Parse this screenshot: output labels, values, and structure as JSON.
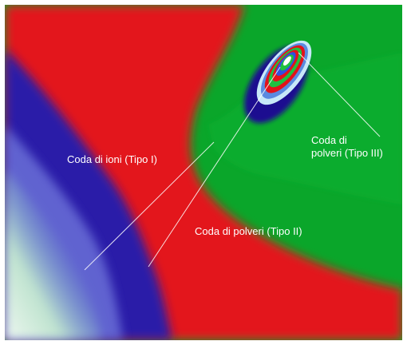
{
  "image": {
    "subject": "comet-false-color",
    "colors": {
      "green": "#0aa62a",
      "red": "#e3121a",
      "blue": "#2a1aa8",
      "pale": "#e8f5ec",
      "label": "#ffffff"
    }
  },
  "labels": {
    "ion_tail": "Coda di ioni (Tipo I)",
    "dust_tail_type2": "Coda di polveri (Tipo II)",
    "dust_tail_type3_line1": "Coda di",
    "dust_tail_type3_line2": "polveri (Tipo III)"
  }
}
